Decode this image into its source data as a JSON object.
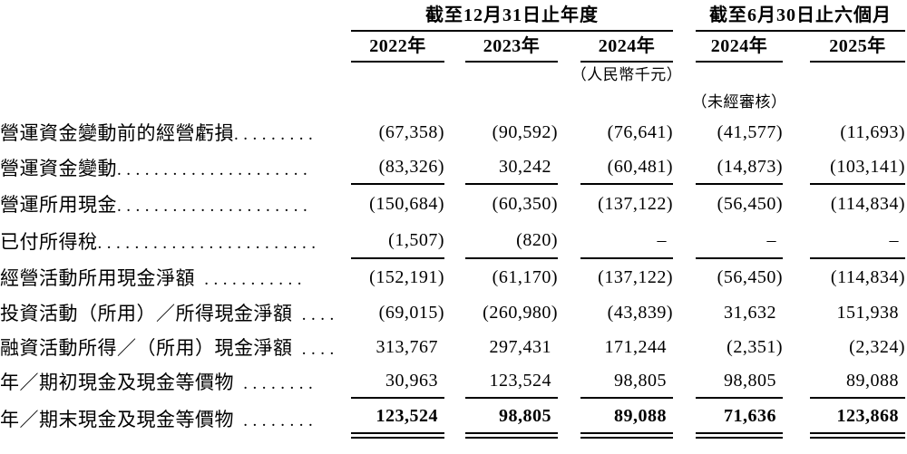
{
  "header": {
    "annual_group": {
      "title": "截至12月31日止年度",
      "years": [
        "2022年",
        "2023年",
        "2024年"
      ]
    },
    "interim_group": {
      "title": "截至6月30日止六個月",
      "years": [
        "2024年",
        "2025年"
      ]
    },
    "currency_note": "（人民幣千元）",
    "unaudited_note": "（未經審核）"
  },
  "rows": [
    {
      "label": "營運資金變動前的經營虧損",
      "dots": ".........",
      "values": [
        "(67,358)",
        "(90,592)",
        "(76,641)",
        "(41,577)",
        "(11,693)"
      ]
    },
    {
      "label": "營運資金變動",
      "dots": ".....................",
      "values": [
        "(83,326)",
        "30,242",
        "(60,481)",
        "(14,873)",
        "(103,141)"
      ]
    },
    {
      "label": "營運所用現金",
      "dots": ".....................",
      "values": [
        "(150,684)",
        "(60,350)",
        "(137,122)",
        "(56,450)",
        "(114,834)"
      ]
    },
    {
      "label": "已付所得稅",
      "dots": "........................",
      "values": [
        "(1,507)",
        "(820)",
        "–",
        "–",
        "–"
      ]
    },
    {
      "label": "經營活動所用現金淨額",
      "dots": " ...........",
      "values": [
        "(152,191)",
        "(61,170)",
        "(137,122)",
        "(56,450)",
        "(114,834)"
      ]
    },
    {
      "label": "投資活動（所用）／所得現金淨額",
      "dots": " ....",
      "values": [
        "(69,015)",
        "(260,980)",
        "(43,839)",
        "31,632",
        "151,938"
      ]
    },
    {
      "label": "融資活動所得／（所用）現金淨額",
      "dots": " ....",
      "values": [
        "313,767",
        "297,431",
        "171,244",
        "(2,351)",
        "(2,324)"
      ]
    },
    {
      "label": "年／期初現金及現金等價物",
      "dots": " ........",
      "values": [
        "30,963",
        "123,524",
        "98,805",
        "98,805",
        "89,088"
      ]
    },
    {
      "label": "年／期末現金及現金等價物",
      "dots": " ........",
      "values": [
        "123,524",
        "98,805",
        "89,088",
        "71,636",
        "123,868"
      ]
    }
  ]
}
